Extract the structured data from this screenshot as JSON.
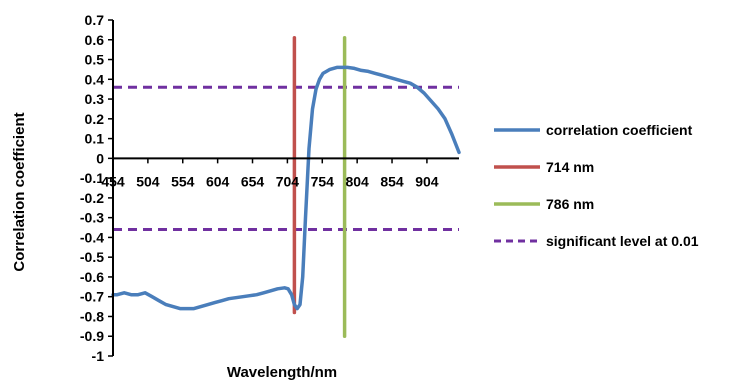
{
  "chart_data": {
    "type": "line",
    "xlabel": "Wavelength/nm",
    "ylabel": "Correlation coefficient",
    "xlim": [
      454,
      950
    ],
    "ylim": [
      -1,
      0.7
    ],
    "x_ticks": [
      "454",
      "504",
      "554",
      "604",
      "654",
      "704",
      "754",
      "804",
      "854",
      "904"
    ],
    "y_ticks": [
      "0.7",
      "0.6",
      "0.5",
      "0.4",
      "0.3",
      "0.2",
      "0.1",
      "0",
      "-0.1",
      "-0.2",
      "-0.3",
      "-0.4",
      "-0.5",
      "-0.6",
      "-0.7",
      "-0.8",
      "-0.9",
      "-1"
    ],
    "legend_position": "right",
    "series": [
      {
        "name": "correlation coefficient",
        "color": "#4a7ebb",
        "style": "solid",
        "x": [
          454,
          460,
          470,
          480,
          490,
          500,
          510,
          520,
          530,
          540,
          550,
          560,
          570,
          580,
          590,
          600,
          610,
          620,
          630,
          640,
          650,
          660,
          670,
          680,
          690,
          700,
          705,
          710,
          714,
          718,
          722,
          726,
          730,
          735,
          740,
          745,
          750,
          755,
          760,
          765,
          770,
          775,
          780,
          786,
          790,
          800,
          810,
          820,
          830,
          840,
          850,
          860,
          870,
          880,
          890,
          900,
          910,
          920,
          930,
          940,
          950
        ],
        "y": [
          -0.69,
          -0.69,
          -0.68,
          -0.69,
          -0.69,
          -0.68,
          -0.7,
          -0.72,
          -0.74,
          -0.75,
          -0.76,
          -0.76,
          -0.76,
          -0.75,
          -0.74,
          -0.73,
          -0.72,
          -0.71,
          -0.705,
          -0.7,
          -0.695,
          -0.69,
          -0.68,
          -0.67,
          -0.66,
          -0.655,
          -0.66,
          -0.69,
          -0.74,
          -0.76,
          -0.74,
          -0.6,
          -0.3,
          0.05,
          0.25,
          0.35,
          0.4,
          0.43,
          0.44,
          0.45,
          0.455,
          0.46,
          0.46,
          0.46,
          0.46,
          0.455,
          0.445,
          0.44,
          0.43,
          0.42,
          0.41,
          0.4,
          0.39,
          0.38,
          0.36,
          0.33,
          0.29,
          0.25,
          0.2,
          0.12,
          0.03
        ]
      },
      {
        "name": "714 nm",
        "color": "#c0504d",
        "style": "solid",
        "x": [
          714,
          714
        ],
        "y": [
          -0.78,
          0.61
        ]
      },
      {
        "name": "786 nm",
        "color": "#9bbb59",
        "style": "solid",
        "x": [
          786,
          786
        ],
        "y": [
          -0.9,
          0.61
        ]
      },
      {
        "name": "significant level at 0.01",
        "color": "#7030a0",
        "style": "dashed",
        "lines": [
          {
            "x": [
              454,
              950
            ],
            "y": [
              0.36,
              0.36
            ]
          },
          {
            "x": [
              454,
              950
            ],
            "y": [
              -0.36,
              -0.36
            ]
          }
        ]
      }
    ]
  }
}
